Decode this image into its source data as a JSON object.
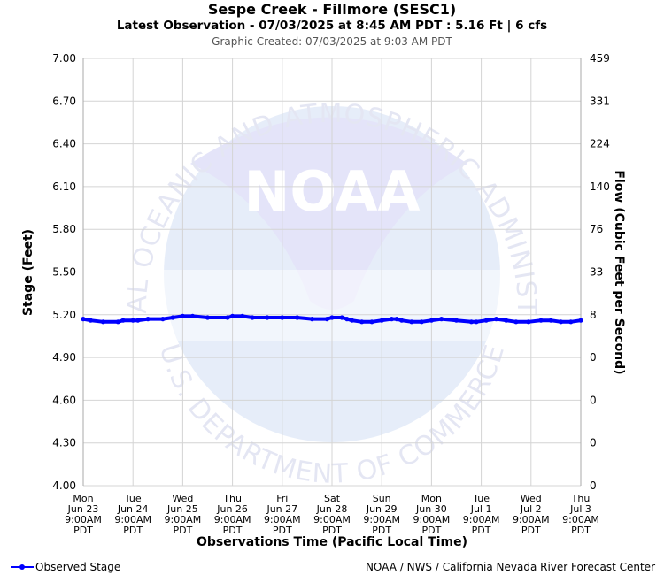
{
  "header": {
    "title": "Sespe Creek - Fillmore (SESC1)",
    "subtitle": "Latest Observation - 07/03/2025 at 8:45 AM PDT : 5.16 Ft | 6 cfs",
    "created": "Graphic Created: 07/03/2025 at 9:03 AM PDT"
  },
  "watermark": {
    "logo_text": "NOAA",
    "ring_top": "NATIONAL OCEANIC AND ATMOSPHERIC ADMINISTRATION",
    "ring_bottom": "U.S. DEPARTMENT OF COMMERCE"
  },
  "legend": {
    "label": "Observed Stage",
    "color": "#0000ff"
  },
  "credit": "NOAA / NWS / California Nevada River Forecast Center",
  "chart_data": {
    "type": "line",
    "xlabel": "Observations Time (Pacific Local Time)",
    "ylabel": "Stage (Feet)",
    "y2label": "Flow (Cubic Feet per Second)",
    "ylim": [
      4.0,
      7.0
    ],
    "yticks": [
      "7.00",
      "6.70",
      "6.40",
      "6.10",
      "5.80",
      "5.50",
      "5.20",
      "4.90",
      "4.60",
      "4.30",
      "4.00"
    ],
    "y2ticks": [
      "459",
      "331",
      "224",
      "140",
      "76",
      "33",
      "8",
      "0",
      "0",
      "0",
      "0"
    ],
    "xlim": [
      0,
      10
    ],
    "xticks": [
      [
        "Mon",
        "Jun 23",
        "9:00AM",
        "PDT"
      ],
      [
        "Tue",
        "Jun 24",
        "9:00AM",
        "PDT"
      ],
      [
        "Wed",
        "Jun 25",
        "9:00AM",
        "PDT"
      ],
      [
        "Thu",
        "Jun 26",
        "9:00AM",
        "PDT"
      ],
      [
        "Fri",
        "Jun 27",
        "9:00AM",
        "PDT"
      ],
      [
        "Sat",
        "Jun 28",
        "9:00AM",
        "PDT"
      ],
      [
        "Sun",
        "Jun 29",
        "9:00AM",
        "PDT"
      ],
      [
        "Mon",
        "Jun 30",
        "9:00AM",
        "PDT"
      ],
      [
        "Tue",
        "Jul 1",
        "9:00AM",
        "PDT"
      ],
      [
        "Wed",
        "Jul 2",
        "9:00AM",
        "PDT"
      ],
      [
        "Thu",
        "Jul 3",
        "9:00AM",
        "PDT"
      ]
    ],
    "grid": true,
    "series": [
      {
        "name": "Observed Stage",
        "color": "#0000ff",
        "x": [
          0.0,
          0.15,
          0.4,
          0.7,
          0.8,
          1.0,
          1.1,
          1.3,
          1.6,
          1.8,
          2.0,
          2.2,
          2.5,
          2.9,
          3.0,
          3.2,
          3.4,
          3.7,
          4.0,
          4.3,
          4.6,
          4.9,
          5.0,
          5.2,
          5.3,
          5.4,
          5.6,
          5.8,
          6.0,
          6.2,
          6.3,
          6.4,
          6.6,
          6.8,
          7.0,
          7.2,
          7.5,
          7.8,
          7.9,
          8.1,
          8.3,
          8.5,
          8.7,
          8.95,
          9.2,
          9.4,
          9.6,
          9.8,
          10.0
        ],
        "y": [
          5.17,
          5.16,
          5.15,
          5.15,
          5.16,
          5.16,
          5.16,
          5.17,
          5.17,
          5.18,
          5.19,
          5.19,
          5.18,
          5.18,
          5.19,
          5.19,
          5.18,
          5.18,
          5.18,
          5.18,
          5.17,
          5.17,
          5.18,
          5.18,
          5.17,
          5.16,
          5.15,
          5.15,
          5.16,
          5.17,
          5.17,
          5.16,
          5.15,
          5.15,
          5.16,
          5.17,
          5.16,
          5.15,
          5.15,
          5.16,
          5.17,
          5.16,
          5.15,
          5.15,
          5.16,
          5.16,
          5.15,
          5.15,
          5.16
        ]
      }
    ]
  }
}
